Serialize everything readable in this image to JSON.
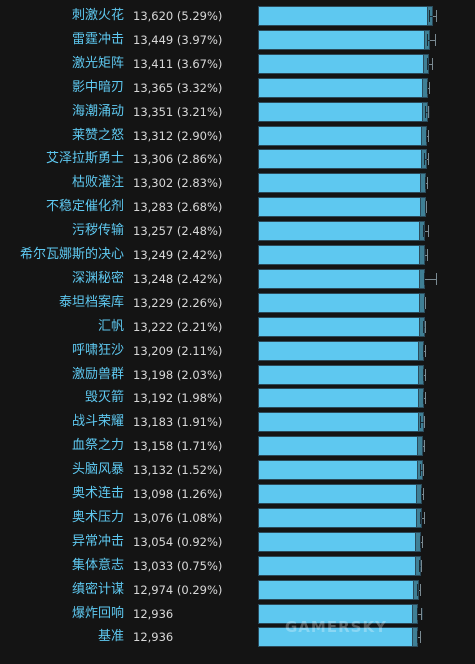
{
  "chart_data": {
    "type": "bar",
    "orientation": "horizontal",
    "categories": [
      "刺激火花",
      "雷霆冲击",
      "激光矩阵",
      "影中暗刃",
      "海潮涌动",
      "莱赞之怒",
      "艾泽拉斯勇士",
      "枯败灌注",
      "不稳定催化剂",
      "污秽传输",
      "希尔瓦娜斯的决心",
      "深渊秘密",
      "泰坦档案库",
      "汇帆",
      "呼啸狂沙",
      "激励兽群",
      "毁灭箭",
      "战斗荣耀",
      "血祭之力",
      "头脑风暴",
      "奥术连击",
      "奥术压力",
      "异常冲击",
      "集体意志",
      "缜密计谋",
      "爆炸回响",
      "基准"
    ],
    "values": [
      13620,
      13449,
      13411,
      13365,
      13351,
      13312,
      13306,
      13302,
      13283,
      13257,
      13249,
      13248,
      13229,
      13222,
      13209,
      13198,
      13192,
      13183,
      13158,
      13132,
      13098,
      13076,
      13054,
      13033,
      12974,
      12936,
      12936
    ],
    "labels": [
      "13,620 (5.29%)",
      "13,449 (3.97%)",
      "13,411 (3.67%)",
      "13,365 (3.32%)",
      "13,351 (3.21%)",
      "13,312 (2.90%)",
      "13,306 (2.86%)",
      "13,302 (2.83%)",
      "13,283 (2.68%)",
      "13,257 (2.48%)",
      "13,249 (2.42%)",
      "13,248 (2.42%)",
      "13,229 (2.26%)",
      "13,222 (2.21%)",
      "13,209 (2.11%)",
      "13,198 (2.03%)",
      "13,192 (1.98%)",
      "13,183 (1.91%)",
      "13,158 (1.71%)",
      "13,132 (1.52%)",
      "13,098 (1.26%)",
      "13,076 (1.08%)",
      "13,054 (0.92%)",
      "13,033 (0.75%)",
      "12,974 (0.29%)",
      "12,936",
      "12,936"
    ],
    "error_range": [
      [
        13400,
        13780
      ],
      [
        13320,
        13720
      ],
      [
        13340,
        13600
      ],
      [
        13320,
        13480
      ],
      [
        13250,
        13440
      ],
      [
        13280,
        13420
      ],
      [
        13200,
        13400
      ],
      [
        13230,
        13380
      ],
      [
        13250,
        13330
      ],
      [
        13150,
        13420
      ],
      [
        13230,
        13370
      ],
      [
        13180,
        13790
      ],
      [
        13180,
        13290
      ],
      [
        13150,
        13300
      ],
      [
        13150,
        13270
      ],
      [
        13150,
        13300
      ],
      [
        13140,
        13260
      ],
      [
        13000,
        13220
      ],
      [
        13130,
        13250
      ],
      [
        13000,
        13200
      ],
      [
        13040,
        13180
      ],
      [
        13000,
        13250
      ],
      [
        13010,
        13140
      ],
      [
        12960,
        13110
      ],
      [
        12880,
        13060
      ],
      [
        12860,
        13120
      ],
      [
        12850,
        13060
      ]
    ],
    "xlim": [
      5600,
      13900
    ],
    "colors": {
      "bar": "#5ec8f0",
      "bar_tip": "#3f7f95",
      "label": "#5ec8f0",
      "value": "#d8d8d8",
      "background": "#141414"
    }
  },
  "watermark": "GAMERSKY"
}
